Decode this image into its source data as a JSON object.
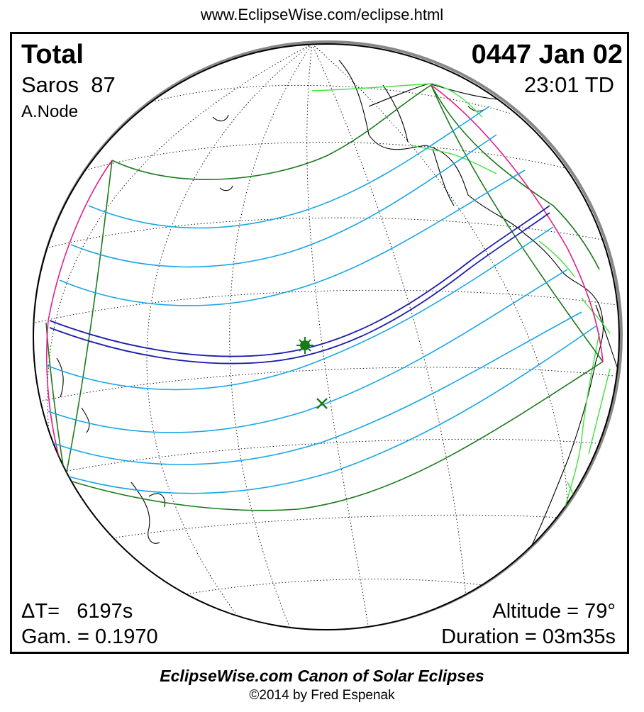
{
  "header": {
    "url": "www.EclipseWise.com/eclipse.html"
  },
  "eclipse": {
    "type": "Total",
    "saros": "Saros  87",
    "node": "A.Node",
    "date": "0447 Jan 02",
    "time": "23:01 TD",
    "delta_t": "ΔT=   6197s",
    "gamma": "Gam. = 0.1970",
    "altitude": "Altitude = 79°",
    "duration": "Duration = 03m35s"
  },
  "footer": {
    "canon": "EclipseWise.com Canon of Solar Eclipses",
    "copyright": "©2014 by Fred Espenak"
  },
  "map": {
    "projection": "orthographic",
    "colors": {
      "penumbra_limit": "#1a7a1a",
      "rise_set_curve": "#e0208a",
      "partial_eclipse_lines": "#19a6e6",
      "central_path": "#1c1caa",
      "coastlines": "#000000",
      "political_borders": "#3de23d",
      "graticule": "#000000"
    },
    "markers": [
      "greatest-eclipse-icon",
      "sub-solar-point-icon"
    ]
  }
}
